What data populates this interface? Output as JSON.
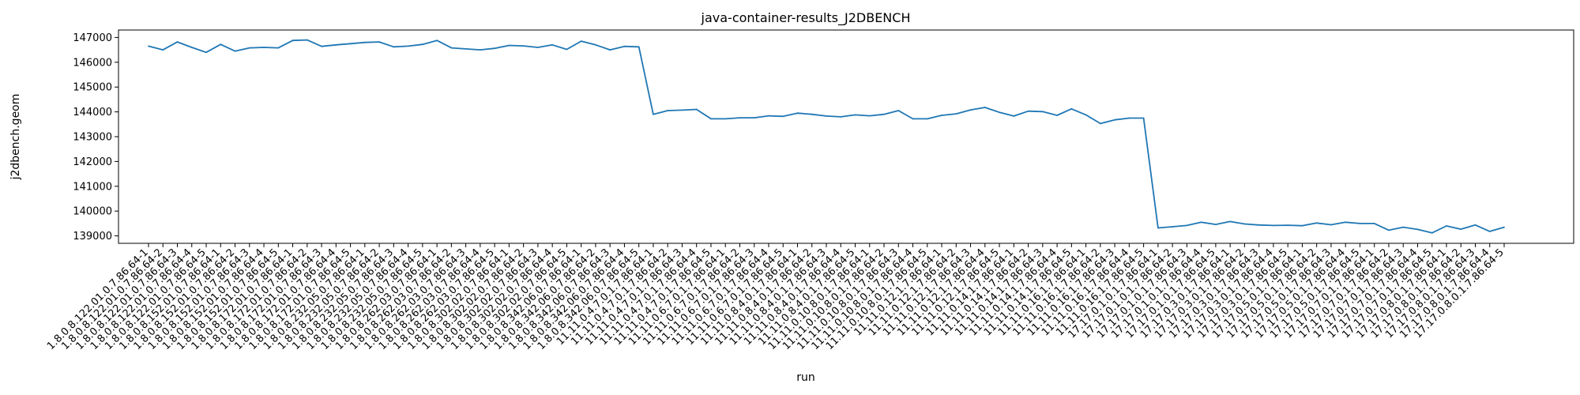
{
  "chart_data": {
    "type": "line",
    "title": "java-container-results_J2DBENCH",
    "xlabel": "run",
    "ylabel": "j2dbench.geom",
    "ylim": [
      138700,
      147300
    ],
    "yticks": [
      139000,
      140000,
      141000,
      142000,
      143000,
      144000,
      145000,
      146000,
      147000
    ],
    "grid": false,
    "legend": "none",
    "line_color": "#1f77b4",
    "categories": [
      "1.8.0.8.122.01.0.7.86.64-1",
      "1.8.0.8.122.01.0.7.86.64-2",
      "1.8.0.8.122.01.0.7.86.64-3",
      "1.8.0.8.122.01.0.7.86.64-4",
      "1.8.0.8.122.01.0.7.86.64-5",
      "1.8.0.8.152.01.0.7.86.64-1",
      "1.8.0.8.152.01.0.7.86.64-2",
      "1.8.0.8.152.01.0.7.86.64-3",
      "1.8.0.8.152.01.0.7.86.64-4",
      "1.8.0.8.152.01.0.7.86.64-5",
      "1.8.0.8.172.01.0.7.86.64-1",
      "1.8.0.8.172.01.0.7.86.64-2",
      "1.8.0.8.172.01.0.7.86.64-3",
      "1.8.0.8.172.01.0.7.86.64-4",
      "1.8.0.8.172.01.0.7.86.64-5",
      "1.8.0.8.232.05.0.7.86.64-1",
      "1.8.0.8.232.05.0.7.86.64-2",
      "1.8.0.8.232.05.0.7.86.64-3",
      "1.8.0.8.232.05.0.7.86.64-4",
      "1.8.0.8.232.05.0.7.86.64-5",
      "1.8.0.8.262.03.0.7.86.64-1",
      "1.8.0.8.262.03.0.7.86.64-2",
      "1.8.0.8.262.03.0.7.86.64-3",
      "1.8.0.8.262.03.0.7.86.64-4",
      "1.8.0.8.262.03.0.7.86.64-5",
      "1.8.0.8.302.02.0.7.86.64-1",
      "1.8.0.8.302.02.0.7.86.64-2",
      "1.8.0.8.302.02.0.7.86.64-3",
      "1.8.0.8.302.02.0.7.86.64-4",
      "1.8.0.8.302.02.0.7.86.64-5",
      "1.8.0.8.342.06.0.7.86.64-1",
      "1.8.0.8.342.06.0.7.86.64-2",
      "1.8.0.8.342.06.0.7.86.64-3",
      "1.8.0.8.342.06.0.7.86.64-4",
      "1.8.0.8.342.06.0.7.86.64-5",
      "11.11.0.4.7.0.1.7.86.64-1",
      "11.11.0.4.7.0.1.7.86.64-2",
      "11.11.0.4.7.0.1.7.86.64-3",
      "11.11.0.4.7.0.1.7.86.64-4",
      "11.11.0.4.7.0.1.7.86.64-5",
      "11.11.0.6.7.0.1.7.86.64-1",
      "11.11.0.6.7.0.1.7.86.64-2",
      "11.11.0.6.7.0.1.7.86.64-3",
      "11.11.0.6.7.0.1.7.86.64-4",
      "11.11.0.6.7.0.1.7.86.64-5",
      "11.11.0.8.4.0.1.7.86.64-1",
      "11.11.0.8.4.0.1.7.86.64-2",
      "11.11.0.8.4.0.1.7.86.64-3",
      "11.11.0.8.4.0.1.7.86.64-4",
      "11.11.0.8.4.0.1.7.86.64-5",
      "11.11.0.10.8.0.1.7.86.64-1",
      "11.11.0.10.8.0.1.7.86.64-2",
      "11.11.0.10.8.0.1.7.86.64-3",
      "11.11.0.10.8.0.1.7.86.64-4",
      "11.11.0.10.8.0.1.7.86.64-5",
      "11.11.0.12.1.7.86.64-1",
      "11.11.0.12.1.7.86.64-2",
      "11.11.0.12.1.7.86.64-3",
      "11.11.0.12.1.7.86.64-4",
      "11.11.0.12.1.7.86.64-5",
      "11.11.0.14.1.7.86.64-1",
      "11.11.0.14.1.7.86.64-2",
      "11.11.0.14.1.7.86.64-3",
      "11.11.0.14.1.7.86.64-4",
      "11.11.0.14.1.7.86.64-5",
      "11.11.0.16.1.7.86.64-1",
      "11.11.0.16.1.7.86.64-2",
      "11.11.0.16.1.7.86.64-3",
      "11.11.0.16.1.7.86.64-4",
      "11.11.0.16.1.7.86.64-5",
      "17.17.0.1.0.1.7.86.64-1",
      "17.17.0.1.0.1.7.86.64-2",
      "17.17.0.1.0.1.7.86.64-3",
      "17.17.0.1.0.1.7.86.64-4",
      "17.17.0.1.0.1.7.86.64-5",
      "17.17.0.3.0.1.7.86.64-1",
      "17.17.0.3.0.1.7.86.64-2",
      "17.17.0.3.0.1.7.86.64-3",
      "17.17.0.3.0.1.7.86.64-4",
      "17.17.0.3.0.1.7.86.64-5",
      "17.17.0.5.0.1.7.86.64-1",
      "17.17.0.5.0.1.7.86.64-2",
      "17.17.0.5.0.1.7.86.64-3",
      "17.17.0.5.0.1.7.86.64-4",
      "17.17.0.5.0.1.7.86.64-5",
      "17.17.0.7.0.1.7.86.64-1",
      "17.17.0.7.0.1.7.86.64-2",
      "17.17.0.7.0.1.7.86.64-3",
      "17.17.0.7.0.1.7.86.64-4",
      "17.17.0.7.0.1.7.86.64-5",
      "17.17.0.8.0.1.7.86.64-1",
      "17.17.0.8.0.1.7.86.64-2",
      "17.17.0.8.0.1.7.86.64-3",
      "17.17.0.8.0.1.7.86.64-4",
      "17.17.0.8.0.1.7.86.64-5"
    ],
    "values": [
      146650,
      146500,
      146820,
      146600,
      146400,
      146720,
      146450,
      146580,
      146600,
      146580,
      146880,
      146900,
      146640,
      146700,
      146750,
      146800,
      146820,
      146620,
      146650,
      146720,
      146880,
      146580,
      146540,
      146500,
      146560,
      146680,
      146660,
      146600,
      146700,
      146520,
      146850,
      146700,
      146500,
      146640,
      146620,
      143900,
      144050,
      144070,
      144100,
      143720,
      143720,
      143760,
      143760,
      143840,
      143820,
      143950,
      143900,
      143830,
      143800,
      143880,
      143840,
      143900,
      144050,
      143720,
      143720,
      143860,
      143920,
      144080,
      144180,
      143980,
      143830,
      144030,
      144010,
      143860,
      144120,
      143880,
      143530,
      143680,
      143750,
      143750,
      139320,
      139370,
      139420,
      139550,
      139460,
      139580,
      139480,
      139440,
      139420,
      139430,
      139410,
      139520,
      139450,
      139550,
      139500,
      139500,
      139230,
      139350,
      139260,
      139120,
      139400,
      139270,
      139440,
      139180,
      139350
    ]
  }
}
